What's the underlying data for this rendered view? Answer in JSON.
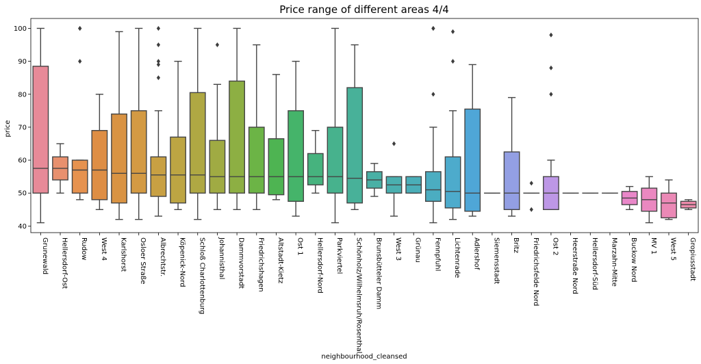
{
  "chart_data": {
    "type": "box",
    "title": "Price range of different areas 4/4",
    "xlabel": "neighbourhood_cleansed",
    "ylabel": "price",
    "ylim": [
      38,
      103
    ],
    "yticks": [
      40,
      50,
      60,
      70,
      80,
      90,
      100
    ],
    "grid": false,
    "legend": "none",
    "categories": [
      {
        "name": "Grunewald",
        "color": "#e78a98",
        "whislo": 41,
        "q1": 50,
        "med": 57.5,
        "q3": 88.5,
        "whishi": 100,
        "fliers": []
      },
      {
        "name": "Hellersdorf-Ost",
        "color": "#e8906e",
        "whislo": 50,
        "q1": 54,
        "med": 57.5,
        "q3": 61,
        "whishi": 65,
        "fliers": []
      },
      {
        "name": "Rudow",
        "color": "#e6924f",
        "whislo": 48,
        "q1": 50,
        "med": 57,
        "q3": 60,
        "whishi": 60,
        "fliers": [
          90,
          100,
          100
        ]
      },
      {
        "name": "West 4",
        "color": "#de8e45",
        "whislo": 45,
        "q1": 48,
        "med": 57,
        "q3": 69,
        "whishi": 80,
        "fliers": []
      },
      {
        "name": "Karlshorst",
        "color": "#d99343",
        "whislo": 42,
        "q1": 47,
        "med": 56,
        "q3": 74,
        "whishi": 99,
        "fliers": []
      },
      {
        "name": "Osloer Straße",
        "color": "#d39a43",
        "whislo": 42,
        "q1": 50,
        "med": 56,
        "q3": 75,
        "whishi": 100,
        "fliers": []
      },
      {
        "name": "Albrechtstr.",
        "color": "#c8a043",
        "whislo": 43,
        "q1": 49,
        "med": 55.5,
        "q3": 61,
        "whishi": 75,
        "fliers": [
          85,
          89,
          90,
          95,
          100
        ]
      },
      {
        "name": "Köpenick-Nord",
        "color": "#bda543",
        "whislo": 45,
        "q1": 47,
        "med": 55.5,
        "q3": 67,
        "whishi": 90,
        "fliers": []
      },
      {
        "name": "Schloß Charlottenburg",
        "color": "#afa843",
        "whislo": 42,
        "q1": 50,
        "med": 55.5,
        "q3": 80.5,
        "whishi": 100,
        "fliers": []
      },
      {
        "name": "Johannisthal",
        "color": "#a0ab43",
        "whislo": 45,
        "q1": 50,
        "med": 55,
        "q3": 66,
        "whishi": 83,
        "fliers": [
          95
        ]
      },
      {
        "name": "Dammvorstadt",
        "color": "#8daf43",
        "whislo": 45,
        "q1": 50,
        "med": 55,
        "q3": 84,
        "whishi": 100,
        "fliers": []
      },
      {
        "name": "Friedrichshagen",
        "color": "#6cb446",
        "whislo": 45,
        "q1": 50,
        "med": 55,
        "q3": 70,
        "whishi": 95,
        "fliers": []
      },
      {
        "name": "Altstadt-Kietz",
        "color": "#4eb452",
        "whislo": 48,
        "q1": 49.5,
        "med": 55,
        "q3": 66.5,
        "whishi": 86,
        "fliers": []
      },
      {
        "name": "Ost 1",
        "color": "#45b46a",
        "whislo": 43,
        "q1": 47.5,
        "med": 55,
        "q3": 75,
        "whishi": 90,
        "fliers": []
      },
      {
        "name": "Hellersdorf-Nord",
        "color": "#46b37e",
        "whislo": 50,
        "q1": 52.5,
        "med": 55,
        "q3": 62,
        "whishi": 69,
        "fliers": []
      },
      {
        "name": "Parkviertel",
        "color": "#47b28d",
        "whislo": 41,
        "q1": 50,
        "med": 55,
        "q3": 70,
        "whishi": 100,
        "fliers": []
      },
      {
        "name": "Schönholz/Wilhelmsruh/Rosenthal",
        "color": "#48b199",
        "whislo": 45,
        "q1": 47,
        "med": 54.5,
        "q3": 82,
        "whishi": 95,
        "fliers": []
      },
      {
        "name": "Brunsbütteler Damm",
        "color": "#49b0a5",
        "whislo": 49,
        "q1": 51.5,
        "med": 54,
        "q3": 56.5,
        "whishi": 59,
        "fliers": []
      },
      {
        "name": "West 3",
        "color": "#4aafaf",
        "whislo": 43,
        "q1": 50,
        "med": 52.5,
        "q3": 55,
        "whishi": 55,
        "fliers": [
          65
        ]
      },
      {
        "name": "Grünau",
        "color": "#4aaeb8",
        "whislo": 50,
        "q1": 50,
        "med": 52.5,
        "q3": 55,
        "whishi": 55,
        "fliers": []
      },
      {
        "name": "Fennpfuhl",
        "color": "#4badc1",
        "whislo": 41,
        "q1": 47.5,
        "med": 51,
        "q3": 56.5,
        "whishi": 70,
        "fliers": [
          80,
          100,
          100
        ]
      },
      {
        "name": "Lichtenrade",
        "color": "#4dabcc",
        "whislo": 42,
        "q1": 45.5,
        "med": 50.5,
        "q3": 61,
        "whishi": 75,
        "fliers": [
          90,
          99
        ]
      },
      {
        "name": "Adlershof",
        "color": "#4fa6d7",
        "whislo": 43,
        "q1": 44.5,
        "med": 50,
        "q3": 75.5,
        "whishi": 89,
        "fliers": []
      },
      {
        "name": "Siemensstadt",
        "color": "#6fa3de",
        "whislo": 50,
        "q1": 50,
        "med": 50,
        "q3": 50,
        "whishi": 50,
        "fliers": []
      },
      {
        "name": "Britz",
        "color": "#939fe3",
        "whislo": 43,
        "q1": 45,
        "med": 50,
        "q3": 62.5,
        "whishi": 79,
        "fliers": []
      },
      {
        "name": "Friedrichsfelde Nord",
        "color": "#a99be6",
        "whislo": 50,
        "q1": 50,
        "med": 50,
        "q3": 50,
        "whishi": 50,
        "fliers": [
          45,
          53
        ]
      },
      {
        "name": "Ost 2",
        "color": "#bd97e6",
        "whislo": 45,
        "q1": 45,
        "med": 50,
        "q3": 55,
        "whishi": 60,
        "fliers": [
          80,
          88,
          98
        ]
      },
      {
        "name": "Heerstraße Nord",
        "color": "#cf92e3",
        "whislo": 50,
        "q1": 50,
        "med": 50,
        "q3": 50,
        "whishi": 50,
        "fliers": []
      },
      {
        "name": "Hellersdorf-Süd",
        "color": "#de8cdc",
        "whislo": 50,
        "q1": 50,
        "med": 50,
        "q3": 50,
        "whishi": 50,
        "fliers": []
      },
      {
        "name": "Marzahn-Mitte",
        "color": "#e789d0",
        "whislo": 50,
        "q1": 50,
        "med": 50,
        "q3": 50,
        "whishi": 50,
        "fliers": []
      },
      {
        "name": "Buckow Nord",
        "color": "#e987c9",
        "whislo": 45,
        "q1": 46.5,
        "med": 48.5,
        "q3": 50.5,
        "whishi": 52,
        "fliers": []
      },
      {
        "name": "MV 1",
        "color": "#ea88c0",
        "whislo": 41,
        "q1": 44.5,
        "med": 48,
        "q3": 51.5,
        "whishi": 55,
        "fliers": []
      },
      {
        "name": "West 5",
        "color": "#eb89b6",
        "whislo": 42,
        "q1": 42.5,
        "med": 47,
        "q3": 50,
        "whishi": 54,
        "fliers": []
      },
      {
        "name": "Gropiusstadt",
        "color": "#ec8aaa",
        "whislo": 45,
        "q1": 45.5,
        "med": 46.5,
        "q3": 47.5,
        "whishi": 48,
        "fliers": []
      }
    ]
  }
}
